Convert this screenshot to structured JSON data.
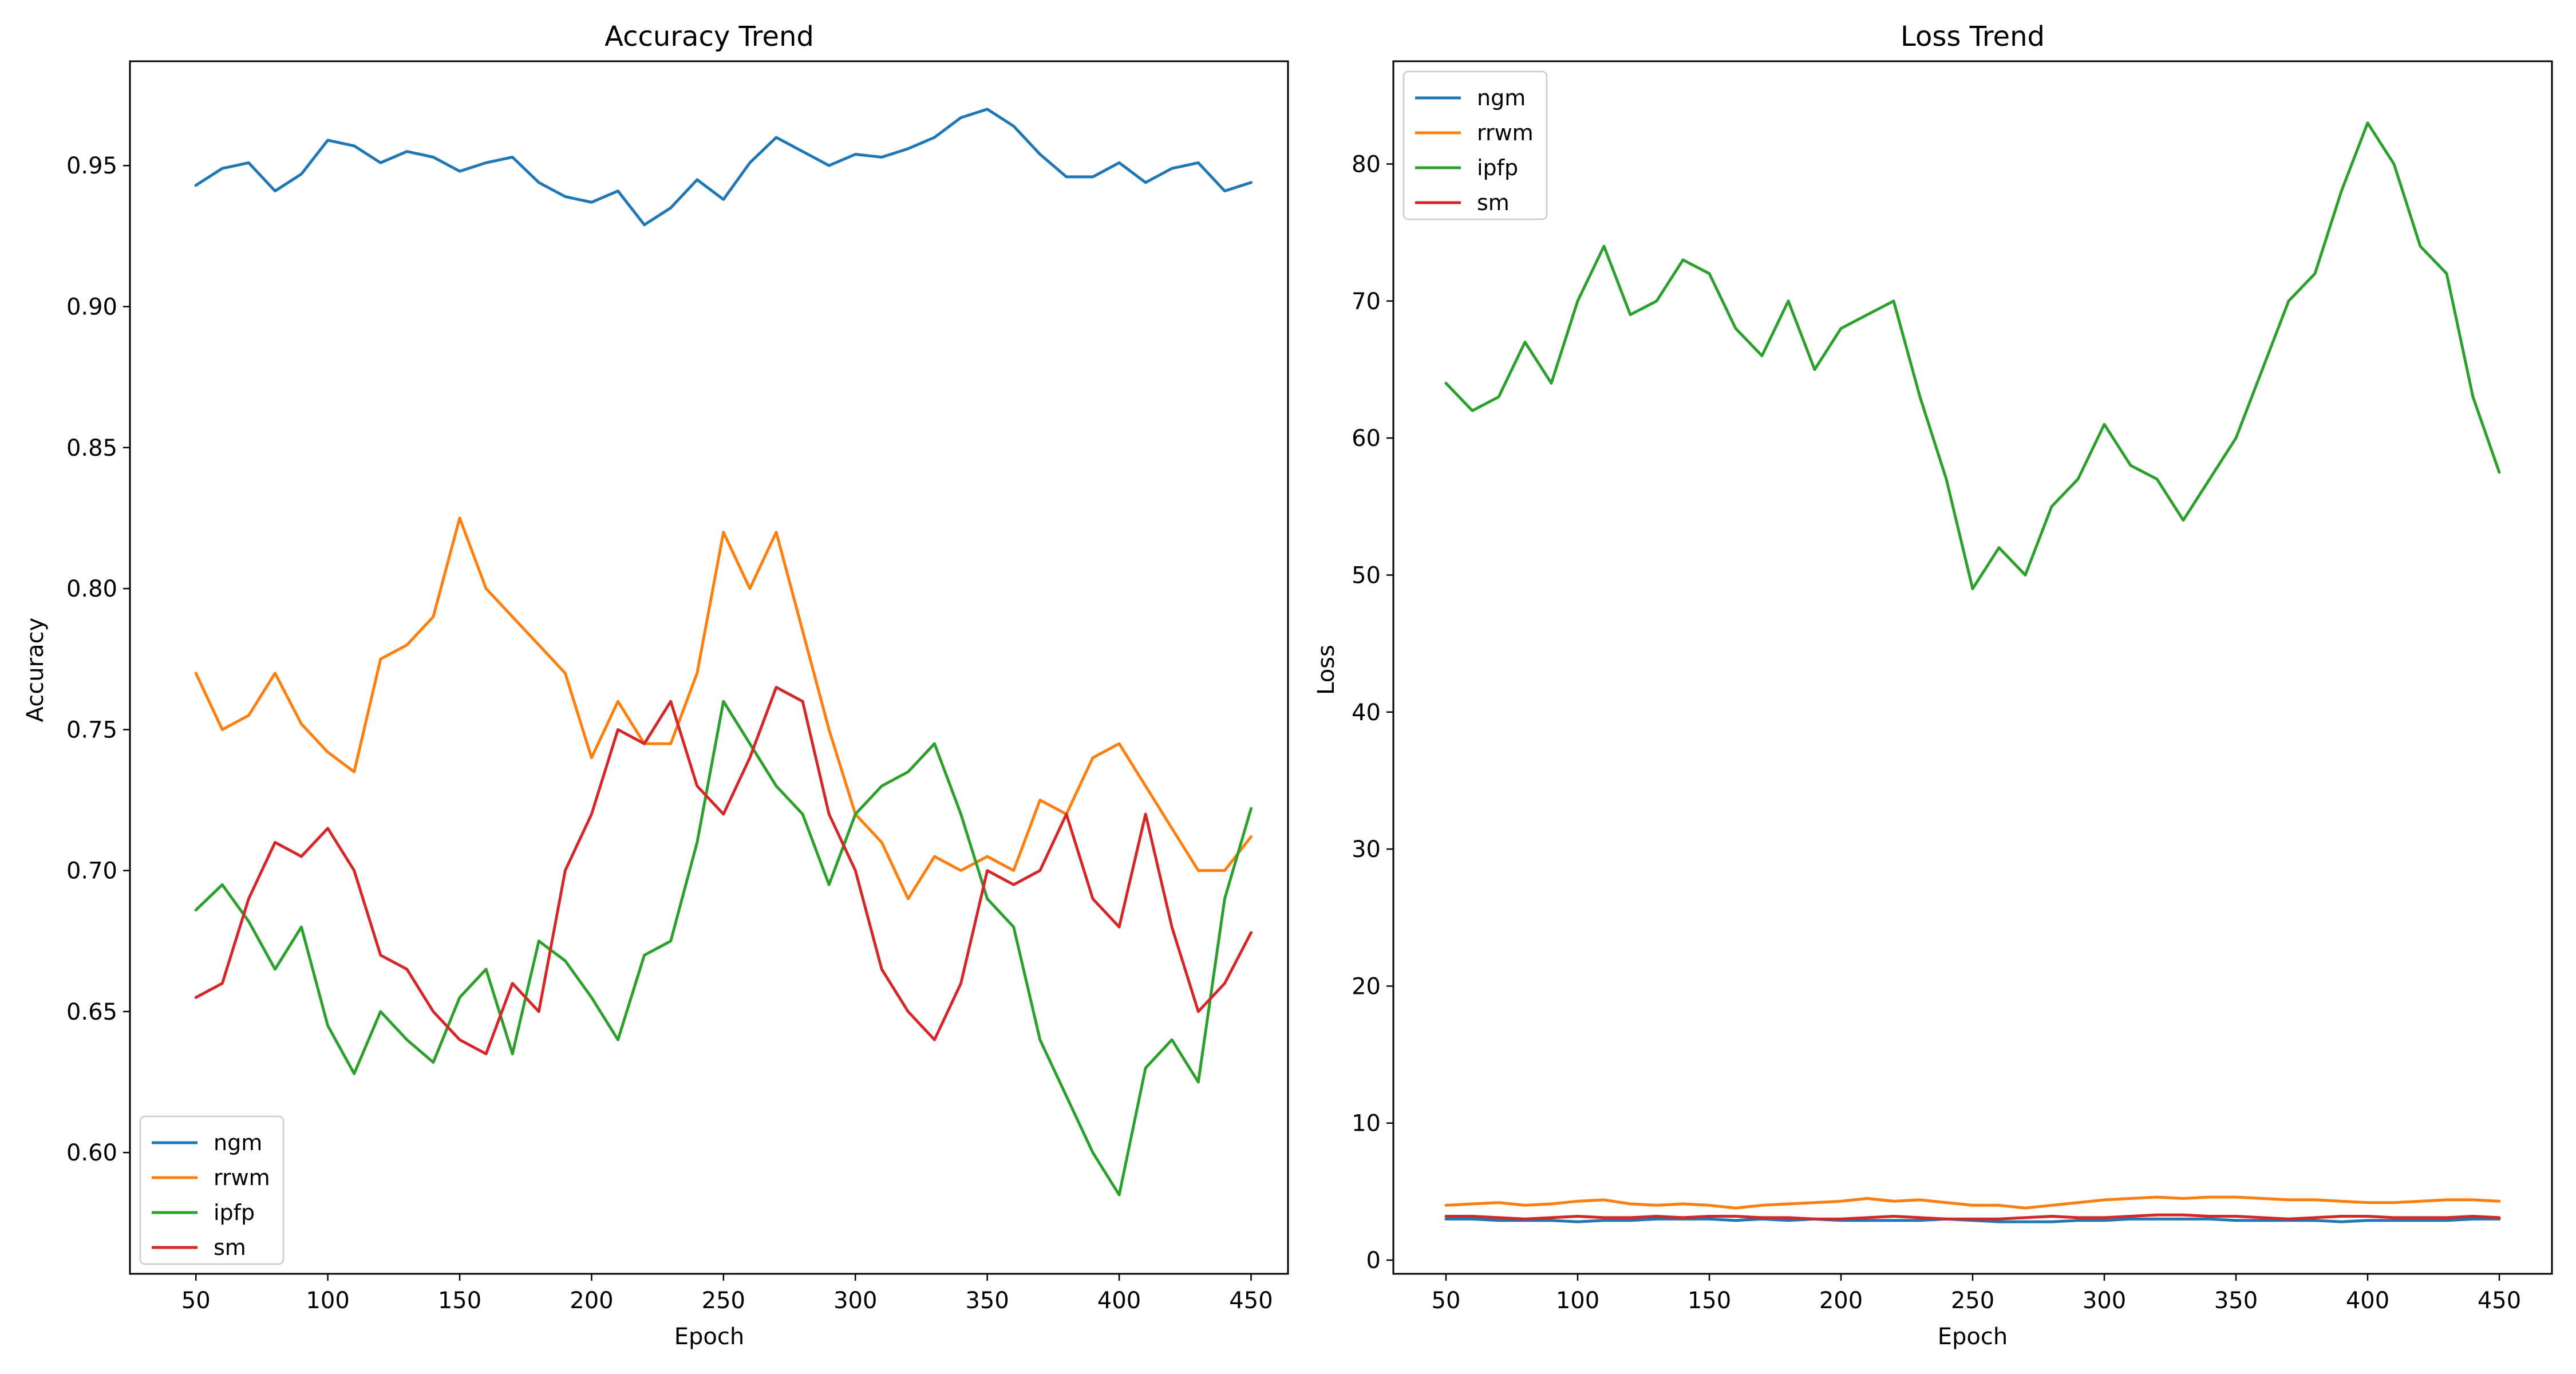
{
  "chart_data": [
    {
      "type": "line",
      "title": "Accuracy Trend",
      "xlabel": "Epoch",
      "ylabel": "Accuracy",
      "xlim": [
        25,
        464
      ],
      "ylim": [
        0.557,
        0.987
      ],
      "xticks": [
        50,
        100,
        150,
        200,
        250,
        300,
        350,
        400,
        450
      ],
      "yticks": [
        0.6,
        0.65,
        0.7,
        0.75,
        0.8,
        0.85,
        0.9,
        0.95
      ],
      "ytick_decimals": 2,
      "legend_position": "lower-left",
      "grid": false,
      "x": [
        50,
        60,
        70,
        80,
        90,
        100,
        110,
        120,
        130,
        140,
        150,
        160,
        170,
        180,
        190,
        200,
        210,
        220,
        230,
        240,
        250,
        260,
        270,
        280,
        290,
        300,
        310,
        320,
        330,
        340,
        350,
        360,
        370,
        380,
        390,
        400,
        410,
        420,
        430,
        440,
        450
      ],
      "series": [
        {
          "name": "ngm",
          "color": "#1f77b4",
          "values": [
            0.943,
            0.949,
            0.951,
            0.941,
            0.947,
            0.959,
            0.957,
            0.951,
            0.955,
            0.953,
            0.948,
            0.951,
            0.953,
            0.944,
            0.939,
            0.937,
            0.941,
            0.929,
            0.935,
            0.945,
            0.938,
            0.951,
            0.96,
            0.955,
            0.95,
            0.954,
            0.953,
            0.956,
            0.96,
            0.967,
            0.97,
            0.964,
            0.954,
            0.946,
            0.946,
            0.951,
            0.944,
            0.949,
            0.951,
            0.941,
            0.944
          ]
        },
        {
          "name": "rrwm",
          "color": "#ff7f0e",
          "values": [
            0.77,
            0.75,
            0.755,
            0.77,
            0.752,
            0.742,
            0.735,
            0.775,
            0.78,
            0.79,
            0.825,
            0.8,
            0.79,
            0.78,
            0.77,
            0.74,
            0.76,
            0.745,
            0.745,
            0.77,
            0.82,
            0.8,
            0.82,
            0.785,
            0.75,
            0.72,
            0.71,
            0.69,
            0.705,
            0.7,
            0.705,
            0.7,
            0.725,
            0.72,
            0.74,
            0.745,
            0.73,
            0.715,
            0.7,
            0.7,
            0.712
          ]
        },
        {
          "name": "ipfp",
          "color": "#2ca02c",
          "values": [
            0.686,
            0.695,
            0.682,
            0.665,
            0.68,
            0.645,
            0.628,
            0.65,
            0.64,
            0.632,
            0.655,
            0.665,
            0.635,
            0.675,
            0.668,
            0.655,
            0.64,
            0.67,
            0.675,
            0.71,
            0.76,
            0.745,
            0.73,
            0.72,
            0.695,
            0.72,
            0.73,
            0.735,
            0.745,
            0.72,
            0.69,
            0.68,
            0.64,
            0.62,
            0.6,
            0.585,
            0.63,
            0.64,
            0.625,
            0.69,
            0.722
          ]
        },
        {
          "name": "sm",
          "color": "#d62728",
          "values": [
            0.655,
            0.66,
            0.69,
            0.71,
            0.705,
            0.715,
            0.7,
            0.67,
            0.665,
            0.65,
            0.64,
            0.635,
            0.66,
            0.65,
            0.7,
            0.72,
            0.75,
            0.745,
            0.76,
            0.73,
            0.72,
            0.74,
            0.765,
            0.76,
            0.72,
            0.7,
            0.665,
            0.65,
            0.64,
            0.66,
            0.7,
            0.695,
            0.7,
            0.72,
            0.69,
            0.68,
            0.72,
            0.68,
            0.65,
            0.66,
            0.678
          ]
        }
      ]
    },
    {
      "type": "line",
      "title": "Loss Trend",
      "xlabel": "Epoch",
      "ylabel": "Loss",
      "xlim": [
        30,
        470
      ],
      "ylim": [
        -1.0,
        87.5
      ],
      "xticks": [
        50,
        100,
        150,
        200,
        250,
        300,
        350,
        400,
        450
      ],
      "yticks": [
        0,
        10,
        20,
        30,
        40,
        50,
        60,
        70,
        80
      ],
      "ytick_decimals": 0,
      "legend_position": "upper-left",
      "grid": false,
      "x": [
        50,
        60,
        70,
        80,
        90,
        100,
        110,
        120,
        130,
        140,
        150,
        160,
        170,
        180,
        190,
        200,
        210,
        220,
        230,
        240,
        250,
        260,
        270,
        280,
        290,
        300,
        310,
        320,
        330,
        340,
        350,
        360,
        370,
        380,
        390,
        400,
        410,
        420,
        430,
        440,
        450
      ],
      "series": [
        {
          "name": "ngm",
          "color": "#1f77b4",
          "values": [
            3.0,
            3.0,
            2.9,
            2.9,
            2.9,
            2.8,
            2.9,
            2.9,
            3.0,
            3.0,
            3.0,
            2.9,
            3.0,
            2.9,
            3.0,
            2.9,
            2.9,
            2.9,
            2.9,
            3.0,
            2.9,
            2.8,
            2.8,
            2.8,
            2.9,
            2.9,
            3.0,
            3.0,
            3.0,
            3.0,
            2.9,
            2.9,
            2.9,
            2.9,
            2.8,
            2.9,
            2.9,
            2.9,
            2.9,
            3.0,
            3.0
          ]
        },
        {
          "name": "rrwm",
          "color": "#ff7f0e",
          "values": [
            4.0,
            4.1,
            4.2,
            4.0,
            4.1,
            4.3,
            4.4,
            4.1,
            4.0,
            4.1,
            4.0,
            3.8,
            4.0,
            4.1,
            4.2,
            4.3,
            4.5,
            4.3,
            4.4,
            4.2,
            4.0,
            4.0,
            3.8,
            4.0,
            4.2,
            4.4,
            4.5,
            4.6,
            4.5,
            4.6,
            4.6,
            4.5,
            4.4,
            4.4,
            4.3,
            4.2,
            4.2,
            4.3,
            4.4,
            4.4,
            4.3
          ]
        },
        {
          "name": "ipfp",
          "color": "#2ca02c",
          "values": [
            64.0,
            62.0,
            63.0,
            67.0,
            64.0,
            70.0,
            74.0,
            69.0,
            70.0,
            73.0,
            72.0,
            68.0,
            66.0,
            70.0,
            65.0,
            68.0,
            69.0,
            70.0,
            63.0,
            57.0,
            49.0,
            52.0,
            50.0,
            55.0,
            57.0,
            61.0,
            58.0,
            57.0,
            54.0,
            57.0,
            60.0,
            65.0,
            70.0,
            72.0,
            78.0,
            83.0,
            80.0,
            74.0,
            72.0,
            63.0,
            57.5
          ]
        },
        {
          "name": "sm",
          "color": "#d62728",
          "values": [
            3.2,
            3.2,
            3.1,
            3.0,
            3.1,
            3.2,
            3.1,
            3.1,
            3.2,
            3.1,
            3.2,
            3.2,
            3.1,
            3.1,
            3.0,
            3.0,
            3.1,
            3.2,
            3.1,
            3.0,
            3.0,
            3.0,
            3.1,
            3.2,
            3.1,
            3.1,
            3.2,
            3.3,
            3.3,
            3.2,
            3.2,
            3.1,
            3.0,
            3.1,
            3.2,
            3.2,
            3.1,
            3.1,
            3.1,
            3.2,
            3.1
          ]
        }
      ]
    }
  ]
}
